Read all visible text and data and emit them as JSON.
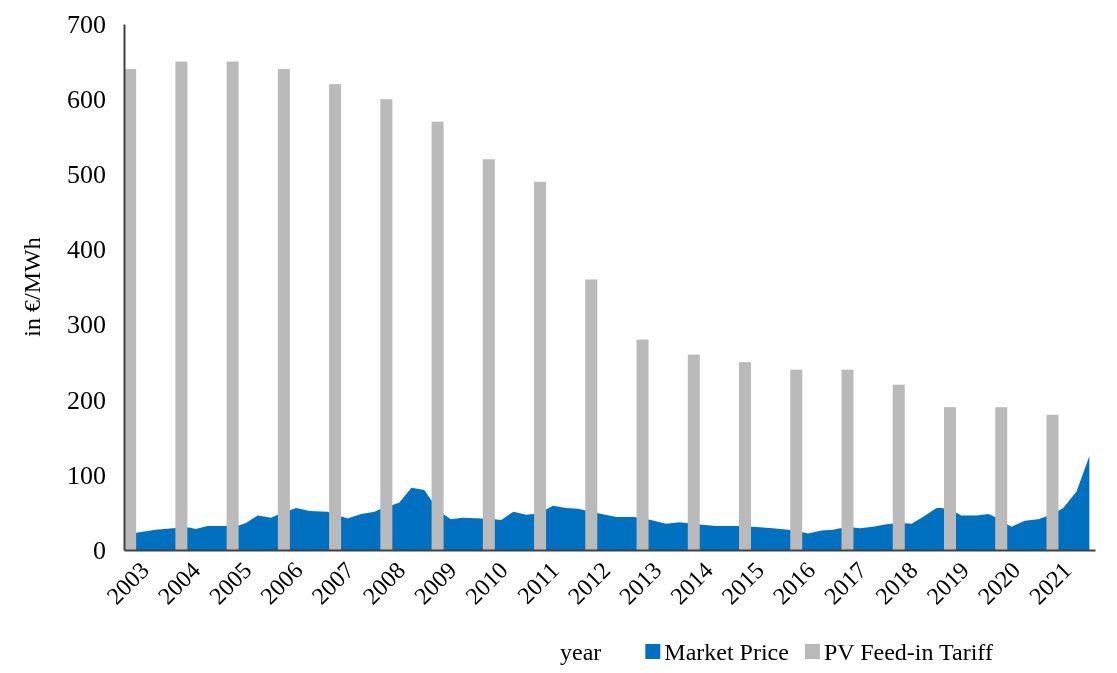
{
  "chart_data": {
    "type": "bar",
    "xlabel": "year",
    "ylabel": "in €/MWh",
    "xlim": [
      2002.88,
      2021.83
    ],
    "xticks": [
      2003,
      2004,
      2005,
      2006,
      2007,
      2008,
      2009,
      2010,
      2011,
      2012,
      2013,
      2014,
      2015,
      2016,
      2017,
      2018,
      2019,
      2020,
      2021
    ],
    "ylim": [
      0,
      700
    ],
    "yticks": [
      0,
      100,
      200,
      300,
      400,
      500,
      600,
      700
    ],
    "grid": false,
    "legend": "bottom",
    "series": [
      {
        "name": "Market Price",
        "type": "area",
        "color": "#0070c0",
        "x": [
          2002.88,
          2003.12,
          2003.5,
          2003.83,
          2004.15,
          2004.28,
          2004.51,
          2004.84,
          2005.13,
          2005.26,
          2005.49,
          2005.75,
          2005.88,
          2006.24,
          2006.5,
          2006.85,
          2007.24,
          2007.51,
          2007.77,
          2007.9,
          2008.25,
          2008.49,
          2008.74,
          2008.87,
          2009.13,
          2009.26,
          2009.49,
          2009.85,
          2010.11,
          2010.24,
          2010.48,
          2010.73,
          2010.87,
          2011.12,
          2011.25,
          2011.51,
          2011.74,
          2011.87,
          2012.13,
          2012.49,
          2012.84,
          2013.1,
          2013.46,
          2013.72,
          2013.85,
          2014.11,
          2014.44,
          2014.86,
          2015.12,
          2015.54,
          2015.84,
          2016.1,
          2016.23,
          2016.49,
          2016.72,
          2016.85,
          2017.11,
          2017.24,
          2017.5,
          2017.73,
          2017.86,
          2018.08,
          2018.25,
          2018.47,
          2018.74,
          2018.85,
          2019.09,
          2019.22,
          2019.52,
          2019.75,
          2019.85,
          2019.97,
          2020.2,
          2020.46,
          2020.72,
          2020.85,
          2021.11,
          2021.21,
          2021.47,
          2021.72
        ],
        "values": [
          23,
          23,
          27,
          29,
          30,
          28,
          32,
          32,
          33,
          36,
          46,
          43,
          47,
          56,
          52,
          51,
          42,
          48,
          51,
          55,
          63,
          83,
          80,
          67,
          47,
          41,
          43,
          42,
          41,
          40,
          51,
          47,
          48,
          54,
          59,
          56,
          55,
          53,
          49,
          44,
          44,
          41,
          35,
          37,
          36,
          34,
          32,
          32,
          31,
          29,
          27,
          24,
          22,
          26,
          27,
          29,
          30,
          29,
          31,
          34,
          35,
          36,
          35,
          44,
          56,
          56,
          51,
          46,
          46,
          48,
          45,
          null,
          31,
          39,
          41,
          44,
          52,
          56,
          78,
          125
        ]
      },
      {
        "name": "PV Feed-in Tariff",
        "color": "#bababa",
        "x": [
          2003,
          2004,
          2005,
          2006,
          2007,
          2008,
          2009,
          2010,
          2011,
          2012,
          2013,
          2014,
          2015,
          2016,
          2017,
          2018,
          2019,
          2020,
          2021
        ],
        "values": [
          640,
          650,
          650,
          640,
          620,
          600,
          570,
          520,
          490,
          360,
          280,
          260,
          250,
          240,
          240,
          220,
          190,
          190,
          180
        ]
      }
    ]
  }
}
